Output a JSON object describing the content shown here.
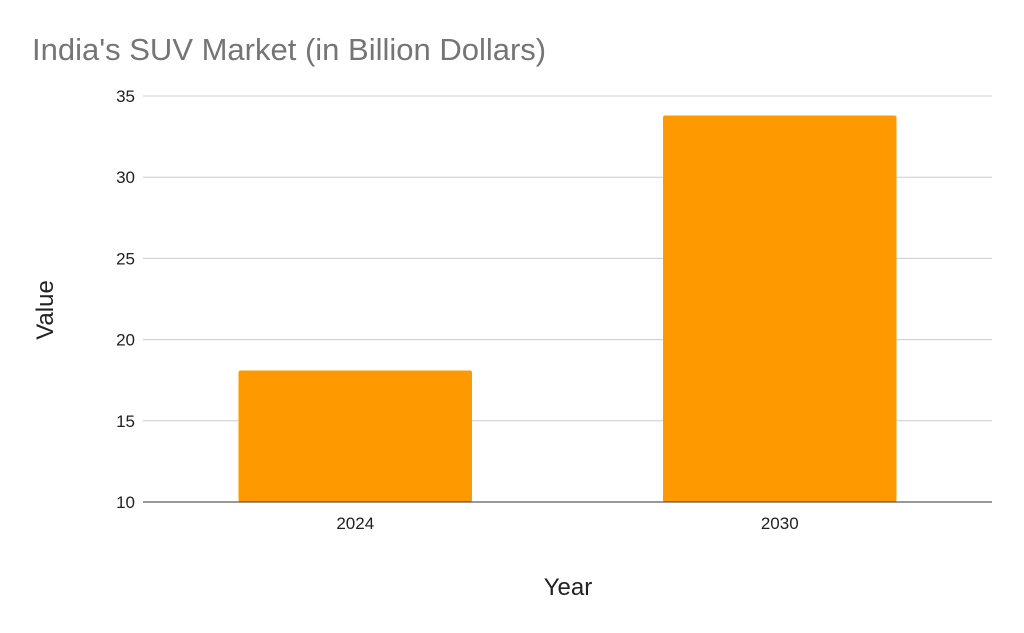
{
  "chart_data": {
    "type": "bar",
    "title": "India's SUV Market (in Billion Dollars)",
    "xlabel": "Year",
    "ylabel": "Value",
    "categories": [
      "2024",
      "2030"
    ],
    "values": [
      18.1,
      33.8
    ],
    "ylim": [
      10,
      35
    ],
    "yticks": [
      10,
      15,
      20,
      25,
      30,
      35
    ],
    "grid": true,
    "legend": "none",
    "bar_color": "#ff9900"
  }
}
